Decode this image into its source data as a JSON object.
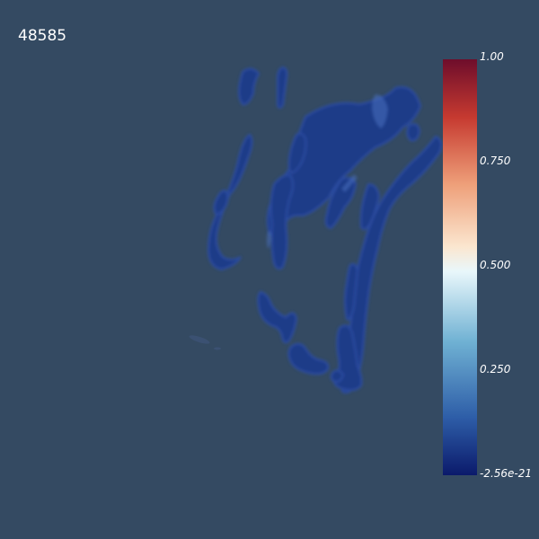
{
  "frame_label": "48585",
  "colorbar": {
    "colormap": "cool-to-warm",
    "stops": [
      "#0b1a6b",
      "#2e5ea8",
      "#6fb1d3",
      "#e9f7fb",
      "#fbe6cf",
      "#ee9f79",
      "#c63a30",
      "#6e0d2b"
    ],
    "tick_labels": [
      "1.00",
      "0.750",
      "0.500",
      "0.250",
      "-2.56e-21"
    ]
  },
  "colors": {
    "background": "#344a62",
    "volume_fill": "#1f3a8c",
    "volume_edge": "#2c4ea8"
  }
}
